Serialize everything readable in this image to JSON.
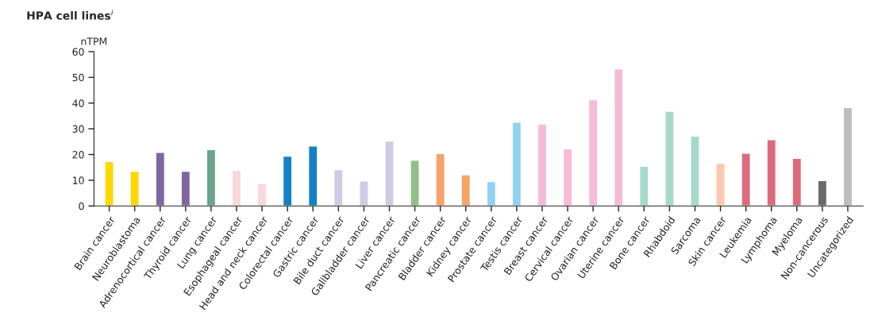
{
  "chart_data": {
    "type": "bar",
    "title": "HPA cell lines$^{i}$",
    "ylabel": "nTPM",
    "categories": [
      "Brain cancer",
      "Neuroblastoma",
      "Adrenocortical cancer",
      "Thyroid cancer",
      "Lung cancer",
      "Esophageal cancer",
      "Head and neck cancer",
      "Colorectal cancer",
      "Gastric cancer",
      "Bile duct cancer",
      "Gallbladder cancer",
      "Liver cancer",
      "Pancreatic cancer",
      "Bladder cancer",
      "Kidney cancer",
      "Prostate cancer",
      "Testis cancer",
      "Breast cancer",
      "Cervical cancer",
      "Ovarian cancer",
      "Uterine cancer",
      "Bone cancer",
      "Rhabdoid",
      "Sarcoma",
      "Skin cancer",
      "Leukemia",
      "Lymphoma",
      "Myeloma",
      "Non-cancerous",
      "Uncategorized"
    ],
    "values": [
      17.3,
      13.5,
      20.8,
      13.5,
      21.9,
      13.8,
      8.7,
      19.4,
      23.3,
      14.1,
      9.7,
      25.2,
      17.8,
      20.4,
      12.1,
      9.5,
      32.6,
      31.8,
      22.2,
      41.3,
      53.3,
      15.4,
      36.8,
      27.2,
      16.6,
      20.5,
      25.8,
      18.5,
      9.9,
      38.3
    ],
    "colors": [
      "#ffd700",
      "#ffd700",
      "#8067a0",
      "#8067a0",
      "#6aa68c",
      "#f9d9d9",
      "#f9d9d9",
      "#1380c7",
      "#1380c7",
      "#d0cbe5",
      "#d0cbe5",
      "#d0cbe5",
      "#93bf8a",
      "#f6a366",
      "#f6a366",
      "#92d3f4",
      "#92d3f4",
      "#f6bbd7",
      "#f6bbd7",
      "#f6bbd7",
      "#f6bbd7",
      "#a7d9cb",
      "#a7d9cb",
      "#a7d9cb",
      "#fbc9ae",
      "#dd6b7c",
      "#dd6b7c",
      "#dd6b7c",
      "#6a6a6a",
      "#bdbdbd"
    ],
    "ylim": [
      0,
      60
    ],
    "yticks": [
      0,
      10,
      20,
      30,
      40,
      50,
      60
    ],
    "grid": false,
    "legend": false
  }
}
